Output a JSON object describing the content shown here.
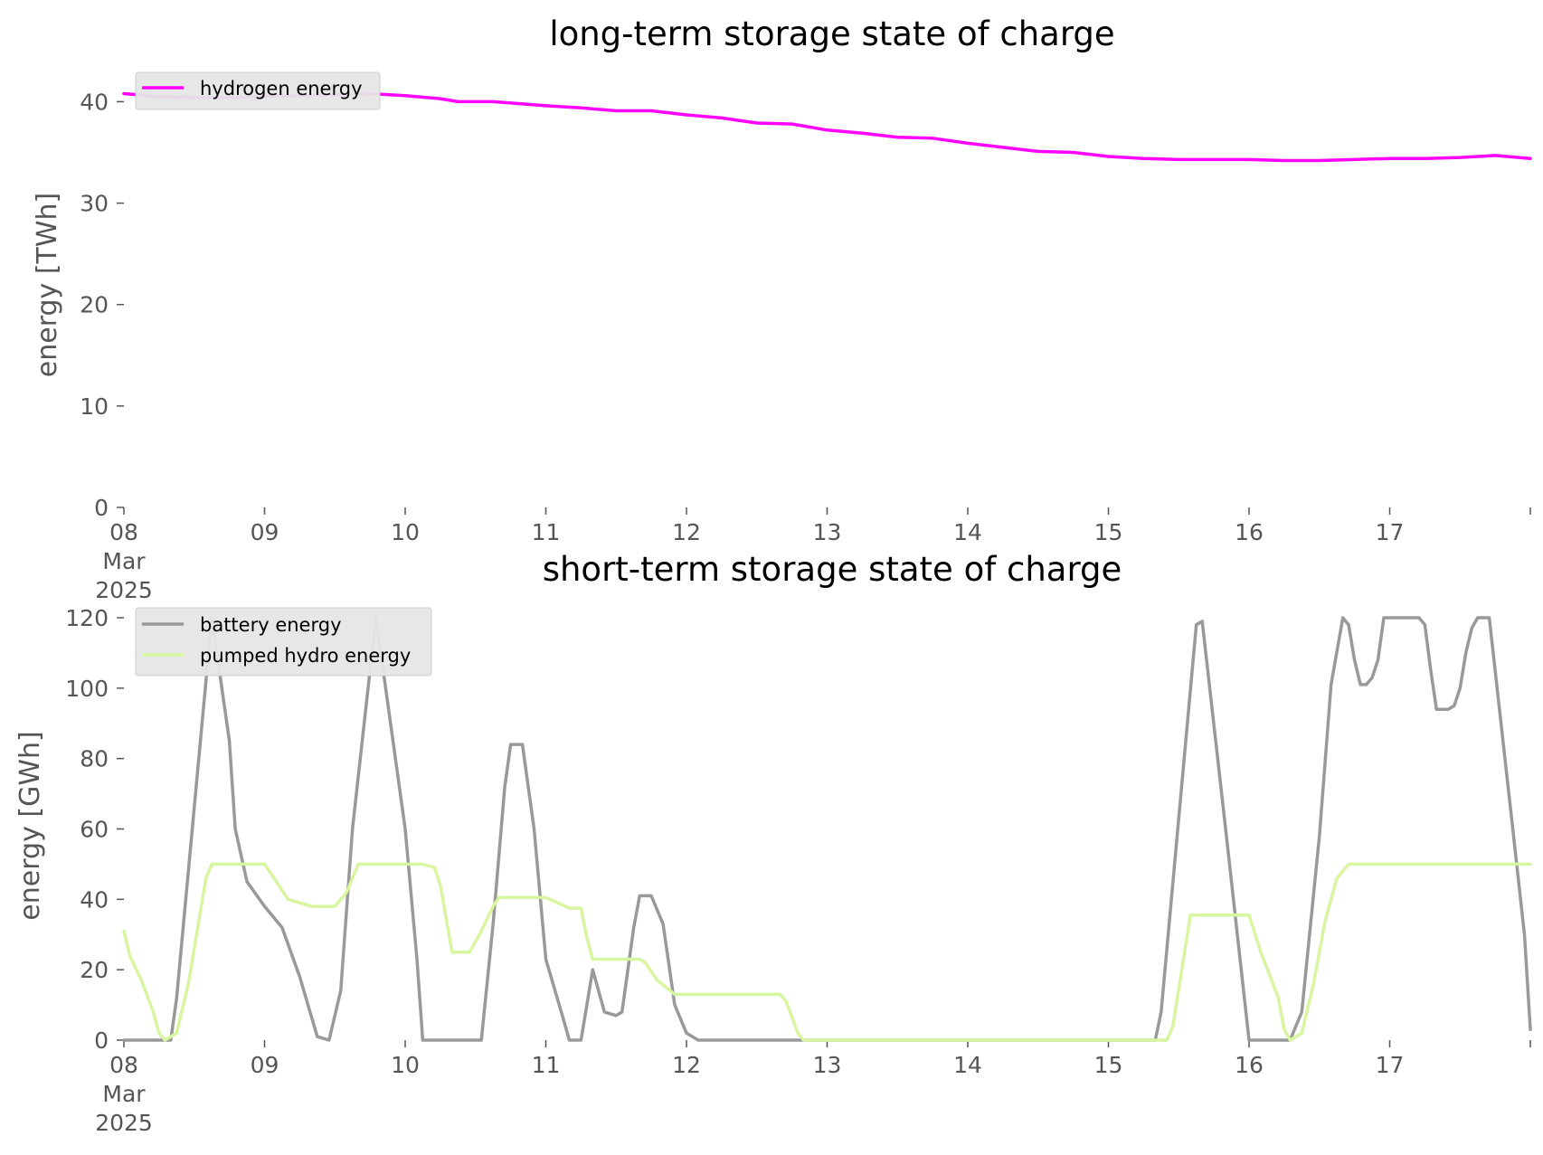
{
  "chart_data": [
    {
      "type": "line",
      "title": "long-term storage state of charge",
      "xlabel": "",
      "ylabel": "energy [TWh]",
      "xlim": [
        "2025-03-08",
        "2025-03-18"
      ],
      "ylim": [
        0,
        42
      ],
      "yticks": [
        0,
        10,
        20,
        30,
        40
      ],
      "xtick_labels": [
        {
          "day": "08",
          "month": "Mar",
          "year": "2025"
        },
        {
          "day": "09"
        },
        {
          "day": "10"
        },
        {
          "day": "11"
        },
        {
          "day": "12"
        },
        {
          "day": "13"
        },
        {
          "day": "14"
        },
        {
          "day": "15"
        },
        {
          "day": "16"
        },
        {
          "day": "17"
        }
      ],
      "grid": false,
      "legend_position": "top-left",
      "series": [
        {
          "name": "hydrogen energy",
          "color": "#ff00ff",
          "points": [
            [
              "2025-03-08 00:00",
              40.8
            ],
            [
              "2025-03-08 06:00",
              40.5
            ],
            [
              "2025-03-08 12:00",
              40.4
            ],
            [
              "2025-03-08 18:00",
              40.4
            ],
            [
              "2025-03-09 00:00",
              40.5
            ],
            [
              "2025-03-09 12:00",
              40.7
            ],
            [
              "2025-03-09 18:00",
              40.8
            ],
            [
              "2025-03-10 00:00",
              40.6
            ],
            [
              "2025-03-10 06:00",
              40.3
            ],
            [
              "2025-03-10 09:00",
              40.0
            ],
            [
              "2025-03-10 15:00",
              40.0
            ],
            [
              "2025-03-11 00:00",
              39.6
            ],
            [
              "2025-03-11 06:00",
              39.4
            ],
            [
              "2025-03-11 12:00",
              39.1
            ],
            [
              "2025-03-11 18:00",
              39.1
            ],
            [
              "2025-03-12 00:00",
              38.7
            ],
            [
              "2025-03-12 06:00",
              38.4
            ],
            [
              "2025-03-12 12:00",
              37.9
            ],
            [
              "2025-03-12 18:00",
              37.8
            ],
            [
              "2025-03-13 00:00",
              37.2
            ],
            [
              "2025-03-13 06:00",
              36.9
            ],
            [
              "2025-03-13 12:00",
              36.5
            ],
            [
              "2025-03-13 18:00",
              36.4
            ],
            [
              "2025-03-14 00:00",
              35.9
            ],
            [
              "2025-03-14 06:00",
              35.5
            ],
            [
              "2025-03-14 12:00",
              35.1
            ],
            [
              "2025-03-14 18:00",
              35.0
            ],
            [
              "2025-03-15 00:00",
              34.6
            ],
            [
              "2025-03-15 06:00",
              34.4
            ],
            [
              "2025-03-15 12:00",
              34.3
            ],
            [
              "2025-03-16 00:00",
              34.3
            ],
            [
              "2025-03-16 06:00",
              34.2
            ],
            [
              "2025-03-16 12:00",
              34.2
            ],
            [
              "2025-03-17 00:00",
              34.4
            ],
            [
              "2025-03-17 06:00",
              34.4
            ],
            [
              "2025-03-17 12:00",
              34.5
            ],
            [
              "2025-03-17 18:00",
              34.7
            ],
            [
              "2025-03-18 00:00",
              34.4
            ]
          ]
        }
      ]
    },
    {
      "type": "line",
      "title": "short-term storage state of charge",
      "xlabel": "",
      "ylabel": "energy [GWh]",
      "xlim": [
        "2025-03-08",
        "2025-03-18"
      ],
      "ylim": [
        0,
        120
      ],
      "yticks": [
        0,
        20,
        40,
        60,
        80,
        100,
        120
      ],
      "xtick_labels": [
        {
          "day": "08",
          "month": "Mar",
          "year": "2025"
        },
        {
          "day": "09"
        },
        {
          "day": "10"
        },
        {
          "day": "11"
        },
        {
          "day": "12"
        },
        {
          "day": "13"
        },
        {
          "day": "14"
        },
        {
          "day": "15"
        },
        {
          "day": "16"
        },
        {
          "day": "17"
        }
      ],
      "grid": false,
      "legend_position": "top-left",
      "series": [
        {
          "name": "battery energy",
          "color": "#999999",
          "points": [
            [
              "2025-03-08 00:00",
              0
            ],
            [
              "2025-03-08 08:00",
              0
            ],
            [
              "2025-03-08 09:00",
              12
            ],
            [
              "2025-03-08 15:00",
              120
            ],
            [
              "2025-03-08 18:00",
              85
            ],
            [
              "2025-03-08 19:00",
              60
            ],
            [
              "2025-03-08 21:00",
              45
            ],
            [
              "2025-03-09 00:00",
              38
            ],
            [
              "2025-03-09 03:00",
              32
            ],
            [
              "2025-03-09 06:00",
              18
            ],
            [
              "2025-03-09 09:00",
              1
            ],
            [
              "2025-03-09 11:00",
              0
            ],
            [
              "2025-03-09 13:00",
              14
            ],
            [
              "2025-03-09 15:00",
              60
            ],
            [
              "2025-03-09 19:00",
              120
            ],
            [
              "2025-03-10 00:00",
              60
            ],
            [
              "2025-03-10 02:00",
              23
            ],
            [
              "2025-03-10 03:00",
              0
            ],
            [
              "2025-03-10 13:00",
              0
            ],
            [
              "2025-03-10 15:00",
              33
            ],
            [
              "2025-03-10 17:00",
              72
            ],
            [
              "2025-03-10 18:00",
              84
            ],
            [
              "2025-03-10 20:00",
              84
            ],
            [
              "2025-03-10 22:00",
              60
            ],
            [
              "2025-03-11 00:00",
              23
            ],
            [
              "2025-03-11 03:00",
              6
            ],
            [
              "2025-03-11 04:00",
              0
            ],
            [
              "2025-03-11 06:00",
              0
            ],
            [
              "2025-03-11 08:00",
              20
            ],
            [
              "2025-03-11 10:00",
              8
            ],
            [
              "2025-03-11 12:00",
              7
            ],
            [
              "2025-03-11 13:00",
              8
            ],
            [
              "2025-03-11 15:00",
              32
            ],
            [
              "2025-03-11 16:00",
              41
            ],
            [
              "2025-03-11 18:00",
              41
            ],
            [
              "2025-03-11 20:00",
              33
            ],
            [
              "2025-03-11 22:00",
              10
            ],
            [
              "2025-03-12 00:00",
              2
            ],
            [
              "2025-03-12 02:00",
              0
            ],
            [
              "2025-03-15 08:00",
              0
            ],
            [
              "2025-03-15 09:00",
              8
            ],
            [
              "2025-03-15 15:00",
              118
            ],
            [
              "2025-03-15 16:00",
              119
            ],
            [
              "2025-03-15 20:00",
              60
            ],
            [
              "2025-03-16 00:00",
              0
            ],
            [
              "2025-03-16 07:00",
              0
            ],
            [
              "2025-03-16 09:00",
              8
            ],
            [
              "2025-03-16 12:00",
              58
            ],
            [
              "2025-03-16 14:00",
              101
            ],
            [
              "2025-03-16 16:00",
              120
            ],
            [
              "2025-03-16 17:00",
              118
            ],
            [
              "2025-03-16 18:00",
              108
            ],
            [
              "2025-03-16 19:00",
              101
            ],
            [
              "2025-03-16 20:00",
              101
            ],
            [
              "2025-03-16 21:00",
              103
            ],
            [
              "2025-03-16 22:00",
              108
            ],
            [
              "2025-03-16 23:00",
              120
            ],
            [
              "2025-03-17 05:00",
              120
            ],
            [
              "2025-03-17 06:00",
              118
            ],
            [
              "2025-03-17 07:00",
              105
            ],
            [
              "2025-03-17 08:00",
              94
            ],
            [
              "2025-03-17 10:00",
              94
            ],
            [
              "2025-03-17 11:00",
              95
            ],
            [
              "2025-03-17 12:00",
              100
            ],
            [
              "2025-03-17 13:00",
              110
            ],
            [
              "2025-03-17 14:00",
              117
            ],
            [
              "2025-03-17 15:00",
              120
            ],
            [
              "2025-03-17 17:00",
              120
            ],
            [
              "2025-03-17 19:00",
              90
            ],
            [
              "2025-03-17 21:00",
              60
            ],
            [
              "2025-03-17 23:00",
              30
            ],
            [
              "2025-03-18 00:00",
              3
            ]
          ]
        },
        {
          "name": "pumped hydro energy",
          "color": "#d8f5a0",
          "points": [
            [
              "2025-03-08 00:00",
              31
            ],
            [
              "2025-03-08 01:00",
              24
            ],
            [
              "2025-03-08 03:00",
              17
            ],
            [
              "2025-03-08 05:00",
              8
            ],
            [
              "2025-03-08 06:00",
              2
            ],
            [
              "2025-03-08 07:00",
              0
            ],
            [
              "2025-03-08 09:00",
              2
            ],
            [
              "2025-03-08 11:00",
              16
            ],
            [
              "2025-03-08 13:00",
              36
            ],
            [
              "2025-03-08 14:00",
              46
            ],
            [
              "2025-03-08 15:00",
              50
            ],
            [
              "2025-03-09 00:00",
              50
            ],
            [
              "2025-03-09 02:00",
              45
            ],
            [
              "2025-03-09 04:00",
              40
            ],
            [
              "2025-03-09 06:00",
              39
            ],
            [
              "2025-03-09 08:00",
              38
            ],
            [
              "2025-03-09 10:00",
              38
            ],
            [
              "2025-03-09 12:00",
              38
            ],
            [
              "2025-03-09 14:00",
              42
            ],
            [
              "2025-03-09 16:00",
              50
            ],
            [
              "2025-03-10 03:00",
              50
            ],
            [
              "2025-03-10 05:00",
              49
            ],
            [
              "2025-03-10 06:00",
              44
            ],
            [
              "2025-03-10 08:00",
              25
            ],
            [
              "2025-03-10 11:00",
              25
            ],
            [
              "2025-03-10 13:00",
              31
            ],
            [
              "2025-03-10 15:00",
              38
            ],
            [
              "2025-03-10 16:00",
              40.5
            ],
            [
              "2025-03-11 00:00",
              40.5
            ],
            [
              "2025-03-11 02:00",
              39
            ],
            [
              "2025-03-11 04:00",
              37.5
            ],
            [
              "2025-03-11 06:00",
              37.5
            ],
            [
              "2025-03-11 07:00",
              29
            ],
            [
              "2025-03-11 08:00",
              23
            ],
            [
              "2025-03-11 15:00",
              23
            ],
            [
              "2025-03-11 16:00",
              23
            ],
            [
              "2025-03-11 17:00",
              22
            ],
            [
              "2025-03-11 19:00",
              17
            ],
            [
              "2025-03-11 22:00",
              13
            ],
            [
              "2025-03-12 12:00",
              13
            ],
            [
              "2025-03-12 16:00",
              13
            ],
            [
              "2025-03-12 17:00",
              11
            ],
            [
              "2025-03-12 19:00",
              2
            ],
            [
              "2025-03-12 20:00",
              0
            ],
            [
              "2025-03-15 10:00",
              0
            ],
            [
              "2025-03-15 11:00",
              4
            ],
            [
              "2025-03-15 14:00",
              35.5
            ],
            [
              "2025-03-16 00:00",
              35.5
            ],
            [
              "2025-03-16 02:00",
              25
            ],
            [
              "2025-03-16 05:00",
              12
            ],
            [
              "2025-03-16 06:00",
              3
            ],
            [
              "2025-03-16 07:00",
              0
            ],
            [
              "2025-03-16 09:00",
              2
            ],
            [
              "2025-03-16 11:00",
              16
            ],
            [
              "2025-03-16 13:00",
              34
            ],
            [
              "2025-03-16 15:00",
              46
            ],
            [
              "2025-03-16 17:00",
              50
            ],
            [
              "2025-03-18 00:00",
              50
            ]
          ]
        }
      ]
    }
  ]
}
